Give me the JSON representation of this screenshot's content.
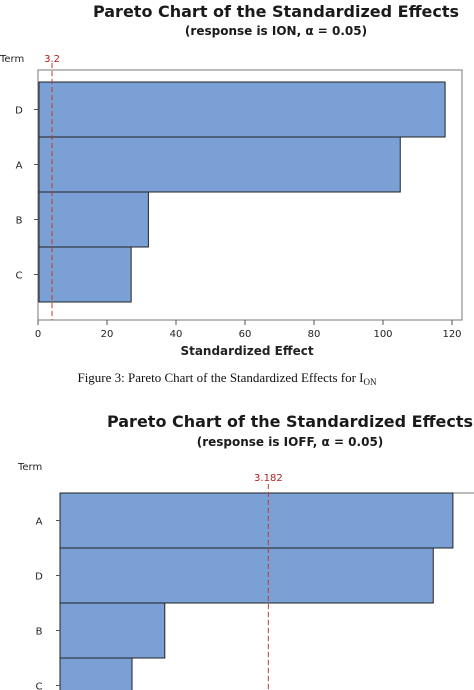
{
  "chart_data": [
    {
      "type": "bar",
      "orientation": "horizontal",
      "title": "Pareto Chart of the Standardized Effects",
      "subtitle": "(response is ION, α = 0.05)",
      "xlabel": "Standardized Effect",
      "ylabel": "Term",
      "categories": [
        "D",
        "A",
        "B",
        "C"
      ],
      "values": [
        118,
        105,
        32,
        27
      ],
      "xlim": [
        0,
        120
      ],
      "xticks": [
        "0",
        "20",
        "40",
        "60",
        "80",
        "100",
        "120"
      ],
      "reference_line": {
        "value": 3.2,
        "label": "3.2",
        "color": "#c0392b"
      },
      "bar_color": "#7aa0d6",
      "grid": false
    },
    {
      "type": "bar",
      "orientation": "horizontal",
      "title": "Pareto Chart of the Standardized Effects",
      "subtitle": "(response is IOFF, α = 0.05)",
      "ylabel": "Term",
      "categories": [
        "A",
        "D",
        "B",
        "C"
      ],
      "values": [
        6.0,
        5.7,
        1.6,
        1.1
      ],
      "reference_line": {
        "value": 3.182,
        "label": "3.182",
        "color": "#c0392b"
      },
      "bar_color": "#7aa0d6",
      "grid": false
    }
  ],
  "caption": {
    "prefix": "Figure 3: Pareto Chart of the Standardized Effects for I",
    "subscript": "ON"
  }
}
